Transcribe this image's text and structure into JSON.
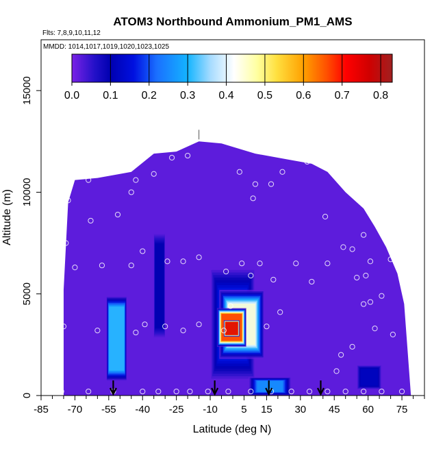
{
  "chart_data": {
    "type": "heatmap",
    "title": "ATOM3 Northbound Ammonium_PM1_AMS",
    "subtitle_flights": "Flts: 7,8,9,10,11,12",
    "subtitle_dates": "MMDD: 1014,1017,1019,1020,1023,1025",
    "xlabel": "Latitude (deg N)",
    "ylabel": "Altitude (m)",
    "xlim": [
      -85,
      85
    ],
    "ylim": [
      0,
      17500
    ],
    "x_ticks": [
      -85,
      -70,
      -55,
      -40,
      -25,
      -10,
      5,
      15,
      30,
      45,
      60,
      75
    ],
    "x_tick_labels": [
      "-85",
      "-70",
      "-55",
      "-40",
      "-25",
      "-10",
      "5",
      "15",
      "30",
      "45",
      "60",
      "75"
    ],
    "x_minor_ticks": [
      -80,
      -75,
      -65,
      -60,
      -50,
      -45,
      -35,
      -30,
      -20,
      -15,
      -5,
      0,
      10,
      20,
      25,
      35,
      40,
      50,
      55,
      65,
      70,
      80,
      85
    ],
    "y_ticks": [
      0,
      5000,
      10000,
      15000
    ],
    "y_tick_labels": [
      "0",
      "5000",
      "10000",
      "15000"
    ],
    "colorbar": {
      "range": [
        0,
        0.83
      ],
      "ticks": [
        0.0,
        0.1,
        0.2,
        0.3,
        0.4,
        0.5,
        0.6,
        0.7,
        0.8
      ],
      "tick_labels": [
        "0.0",
        "0.1",
        "0.2",
        "0.3",
        "0.4",
        "0.5",
        "0.6",
        "0.7",
        "0.8"
      ],
      "stops": [
        {
          "v": 0.0,
          "c": "#7a22e6"
        },
        {
          "v": 0.06,
          "c": "#2210c8"
        },
        {
          "v": 0.1,
          "c": "#0000b0"
        },
        {
          "v": 0.16,
          "c": "#0010e0"
        },
        {
          "v": 0.22,
          "c": "#1a70ff"
        },
        {
          "v": 0.3,
          "c": "#14b4ff"
        },
        {
          "v": 0.36,
          "c": "#a8dcff"
        },
        {
          "v": 0.42,
          "c": "#ffffff"
        },
        {
          "v": 0.48,
          "c": "#ffffa0"
        },
        {
          "v": 0.53,
          "c": "#ffe040"
        },
        {
          "v": 0.6,
          "c": "#ffa000"
        },
        {
          "v": 0.66,
          "c": "#ff5000"
        },
        {
          "v": 0.71,
          "c": "#ff0000"
        },
        {
          "v": 0.77,
          "c": "#d00000"
        },
        {
          "v": 0.83,
          "c": "#a02020"
        }
      ]
    },
    "background_value": 0.02,
    "envelope": [
      [
        -75,
        5200
      ],
      [
        -73,
        9500
      ],
      [
        -70,
        10600
      ],
      [
        -60,
        10700
      ],
      [
        -45,
        11000
      ],
      [
        -35,
        11900
      ],
      [
        -25,
        12000
      ],
      [
        -15,
        12500
      ],
      [
        -5,
        12400
      ],
      [
        10,
        11900
      ],
      [
        25,
        11600
      ],
      [
        35,
        11400
      ],
      [
        42,
        11000
      ],
      [
        50,
        10000
      ],
      [
        58,
        9200
      ],
      [
        63,
        8300
      ],
      [
        68,
        7300
      ],
      [
        73,
        6000
      ],
      [
        76,
        4500
      ],
      [
        79,
        0
      ]
    ],
    "features": [
      {
        "lon": [
          -56,
          -47
        ],
        "alt": [
          700,
          4900
        ],
        "value": 0.31,
        "fade": 2.5
      },
      {
        "lon": [
          -10,
          10
        ],
        "alt": [
          700,
          6300
        ],
        "value": 0.18,
        "fade": 4
      },
      {
        "lon": [
          -6,
          14
        ],
        "alt": [
          1800,
          5200
        ],
        "value": 0.45,
        "fade": 4
      },
      {
        "lon": [
          -7,
          6
        ],
        "alt": [
          2400,
          4300
        ],
        "value": 0.68,
        "fade": 3
      },
      {
        "lon": [
          -4,
          3
        ],
        "alt": [
          2900,
          3700
        ],
        "value": 0.76,
        "fade": 2
      },
      {
        "lon": [
          7,
          26
        ],
        "alt": [
          0,
          900
        ],
        "value": 0.26,
        "fade": 4
      },
      {
        "lon": [
          55,
          66
        ],
        "alt": [
          300,
          1500
        ],
        "value": 0.12,
        "fade": 3
      },
      {
        "lon": [
          -35,
          -30
        ],
        "alt": [
          2800,
          8000
        ],
        "value": 0.1,
        "fade": 2
      }
    ],
    "points": [
      [
        -80,
        5500
      ],
      [
        -75,
        3400
      ],
      [
        -74,
        7500
      ],
      [
        -73,
        9600
      ],
      [
        -70,
        6300
      ],
      [
        -64,
        10600
      ],
      [
        -63,
        8600
      ],
      [
        -60,
        3200
      ],
      [
        -58,
        6400
      ],
      [
        -51,
        8900
      ],
      [
        -45,
        10000
      ],
      [
        -43,
        10600
      ],
      [
        -45,
        6400
      ],
      [
        -43,
        3100
      ],
      [
        -40,
        7100
      ],
      [
        -39,
        3500
      ],
      [
        -35,
        10900
      ],
      [
        -30,
        3400
      ],
      [
        -29,
        6600
      ],
      [
        -27,
        11700
      ],
      [
        -22,
        6600
      ],
      [
        -22,
        3200
      ],
      [
        -20,
        11800
      ],
      [
        -15,
        6800
      ],
      [
        -15,
        3500
      ],
      [
        -3,
        6100
      ],
      [
        -1,
        4400
      ],
      [
        -4,
        3200
      ],
      [
        3,
        11000
      ],
      [
        4,
        6500
      ],
      [
        9,
        9700
      ],
      [
        10,
        10400
      ],
      [
        8,
        5900
      ],
      [
        12,
        6500
      ],
      [
        15,
        3400
      ],
      [
        17,
        10400
      ],
      [
        18,
        5700
      ],
      [
        21,
        4100
      ],
      [
        22,
        11000
      ],
      [
        28,
        6500
      ],
      [
        33,
        11500
      ],
      [
        35,
        5600
      ],
      [
        40,
        11400
      ],
      [
        41,
        8800
      ],
      [
        42,
        6500
      ],
      [
        46,
        1200
      ],
      [
        48,
        2000
      ],
      [
        49,
        7300
      ],
      [
        53,
        7200
      ],
      [
        53,
        2400
      ],
      [
        55,
        5800
      ],
      [
        58,
        7900
      ],
      [
        58,
        4500
      ],
      [
        59,
        5900
      ],
      [
        61,
        6600
      ],
      [
        61,
        4600
      ],
      [
        63,
        3300
      ],
      [
        66,
        4900
      ],
      [
        66,
        8500
      ],
      [
        70,
        6700
      ],
      [
        71,
        3000
      ],
      [
        -76,
        200
      ],
      [
        -64,
        200
      ],
      [
        -53,
        200
      ],
      [
        -40,
        200
      ],
      [
        -33,
        200
      ],
      [
        -25,
        200
      ],
      [
        -19,
        200
      ],
      [
        -11,
        200
      ],
      [
        -2,
        200
      ],
      [
        8,
        200
      ],
      [
        17,
        200
      ],
      [
        26,
        200
      ],
      [
        34,
        200
      ],
      [
        42,
        200
      ],
      [
        50,
        200
      ],
      [
        58,
        200
      ],
      [
        66,
        200
      ],
      [
        75,
        200
      ]
    ],
    "arrows_lat": [
      -53,
      -8,
      16,
      39
    ],
    "top_marker": {
      "lat": -15,
      "alt": 12600
    },
    "grid": false,
    "legend": "colorbar-top"
  }
}
